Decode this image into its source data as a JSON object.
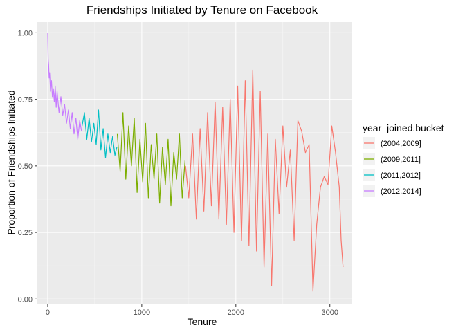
{
  "chart_data": {
    "type": "line",
    "title": "Friendships Initiated by Tenure on Facebook",
    "xlabel": "Tenure",
    "ylabel": "Proportion of Friendships Initiated",
    "xlim": [
      -110,
      3230
    ],
    "ylim": [
      -0.02,
      1.04
    ],
    "x_ticks": [
      0,
      1000,
      2000,
      3000
    ],
    "x_tick_labels": [
      "0",
      "1000",
      "2000",
      "3000"
    ],
    "y_ticks": [
      0.0,
      0.25,
      0.5,
      0.75,
      1.0
    ],
    "y_tick_labels": [
      "0.00",
      "0.25",
      "0.50",
      "0.75",
      "1.00"
    ],
    "grid": true,
    "legend": {
      "title": "year_joined.bucket",
      "position": "right"
    },
    "series": [
      {
        "name": "(2012,2014]",
        "color": "#C77CFF",
        "x": [
          0,
          5,
          10,
          15,
          20,
          30,
          40,
          50,
          60,
          70,
          80,
          90,
          100,
          120,
          140,
          160,
          180,
          200,
          220,
          240,
          260,
          280,
          300,
          320,
          340,
          360
        ],
        "y": [
          1.0,
          0.9,
          0.88,
          0.83,
          0.85,
          0.78,
          0.82,
          0.76,
          0.79,
          0.74,
          0.8,
          0.72,
          0.78,
          0.7,
          0.76,
          0.69,
          0.73,
          0.66,
          0.71,
          0.64,
          0.7,
          0.62,
          0.68,
          0.6,
          0.67,
          0.63
        ]
      },
      {
        "name": "(2011,2012]",
        "color": "#00BFC4",
        "x": [
          365,
          390,
          415,
          440,
          465,
          490,
          515,
          540,
          565,
          590,
          615,
          640,
          665,
          690,
          715,
          735
        ],
        "y": [
          0.65,
          0.7,
          0.6,
          0.68,
          0.59,
          0.66,
          0.58,
          0.71,
          0.56,
          0.64,
          0.53,
          0.62,
          0.55,
          0.61,
          0.54,
          0.57
        ]
      },
      {
        "name": "(2009,2011]",
        "color": "#7CAE00",
        "x": [
          740,
          770,
          800,
          830,
          860,
          890,
          920,
          950,
          980,
          1010,
          1040,
          1070,
          1100,
          1130,
          1160,
          1190,
          1220,
          1250,
          1280,
          1310,
          1340,
          1370,
          1400,
          1430,
          1460
        ],
        "y": [
          0.62,
          0.48,
          0.7,
          0.45,
          0.65,
          0.5,
          0.68,
          0.4,
          0.6,
          0.44,
          0.66,
          0.38,
          0.58,
          0.45,
          0.62,
          0.36,
          0.57,
          0.43,
          0.6,
          0.35,
          0.55,
          0.45,
          0.62,
          0.38,
          0.52
        ]
      },
      {
        "name": "(2004,2009]",
        "color": "#F8766D",
        "x": [
          1465,
          1500,
          1540,
          1580,
          1620,
          1660,
          1700,
          1740,
          1780,
          1820,
          1860,
          1900,
          1940,
          1980,
          2020,
          2060,
          2100,
          2140,
          2180,
          2220,
          2260,
          2300,
          2340,
          2380,
          2420,
          2460,
          2500,
          2540,
          2580,
          2620,
          2660,
          2700,
          2740,
          2780,
          2820,
          2860,
          2900,
          2940,
          2980,
          3020,
          3060,
          3100,
          3120,
          3140
        ],
        "y": [
          0.5,
          0.38,
          0.62,
          0.3,
          0.64,
          0.33,
          0.7,
          0.35,
          0.74,
          0.3,
          0.72,
          0.28,
          0.75,
          0.25,
          0.8,
          0.22,
          0.82,
          0.2,
          0.86,
          0.18,
          0.78,
          0.12,
          0.62,
          0.05,
          0.6,
          0.32,
          0.65,
          0.42,
          0.56,
          0.22,
          0.67,
          0.63,
          0.55,
          0.58,
          0.03,
          0.28,
          0.42,
          0.46,
          0.43,
          0.65,
          0.55,
          0.42,
          0.22,
          0.12
        ]
      }
    ]
  }
}
